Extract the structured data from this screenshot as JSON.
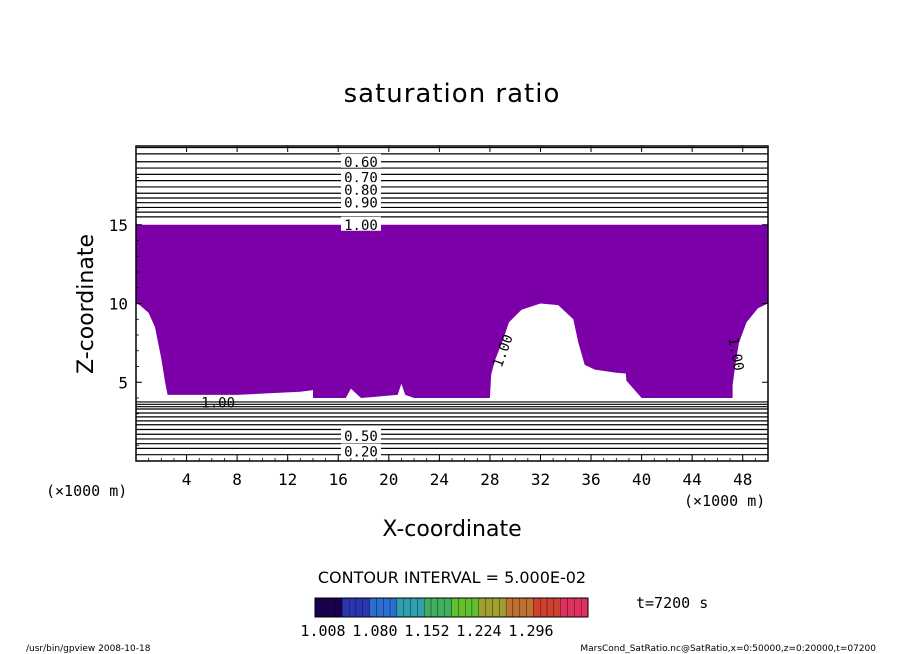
{
  "chart_data": {
    "type": "contour",
    "title": "saturation ratio",
    "xlabel": "X-coordinate",
    "ylabel": "Z-coordinate",
    "x_unit": "(×1000 m)",
    "y_unit": "(×1000 m)",
    "xlim": [
      0,
      50
    ],
    "ylim": [
      0,
      20
    ],
    "x_ticks": [
      4,
      8,
      12,
      16,
      20,
      24,
      28,
      32,
      36,
      40,
      44,
      48
    ],
    "y_ticks": [
      5,
      10,
      15
    ],
    "contour_labels": [
      {
        "text": "0.60",
        "x": 17.8,
        "z": 19.0
      },
      {
        "text": "0.70",
        "x": 17.8,
        "z": 18.0
      },
      {
        "text": "0.80",
        "x": 17.8,
        "z": 17.2
      },
      {
        "text": "0.90",
        "x": 17.8,
        "z": 16.4
      },
      {
        "text": "1.00",
        "x": 17.8,
        "z": 15.0
      },
      {
        "text": "1.00",
        "x": 6.5,
        "z": 3.7
      },
      {
        "text": "1.00",
        "x": 29.0,
        "z": 7.0
      },
      {
        "text": "1.00",
        "x": 47.5,
        "z": 6.8
      },
      {
        "text": "0.50",
        "x": 17.8,
        "z": 1.6
      },
      {
        "text": "0.20",
        "x": 17.8,
        "z": 0.6
      }
    ],
    "filled_region": {
      "threshold": 1.0,
      "color": "#7b00a8",
      "z_top": 15.0
    },
    "contour_interval_text": "CONTOUR INTERVAL = 5.000E-02",
    "colorbar": {
      "ticks": [
        "1.008",
        "1.080",
        "1.152",
        "1.224",
        "1.296"
      ],
      "colors": [
        "#1a0050",
        "#2a35b0",
        "#2a70d0",
        "#30a0b0",
        "#40b060",
        "#60c030",
        "#a0a030",
        "#c07030",
        "#d04030",
        "#e03060"
      ]
    },
    "time_text": "t=7200 s",
    "footer_left": "/usr/bin/gpview   2008-10-18",
    "footer_right": "MarsCond_SatRatio.nc@SatRatio,x=0:50000,z=0:20000,t=07200"
  }
}
